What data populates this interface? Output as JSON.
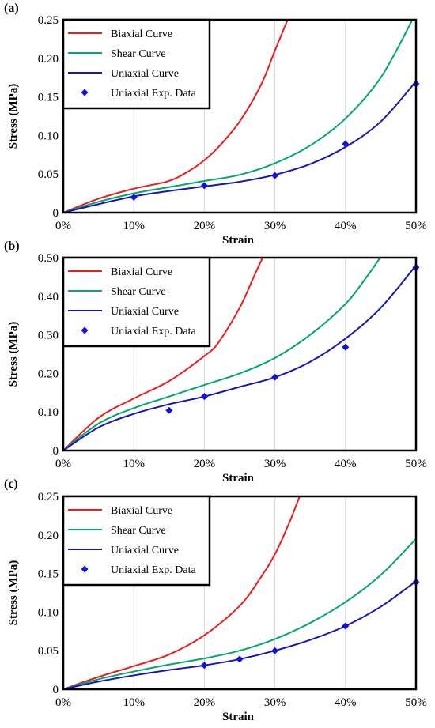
{
  "figure": {
    "colors": {
      "biaxial": "#ee1c1c",
      "shear": "#00a869",
      "uniaxial": "#1616b4",
      "exp_marker": "#1010e0",
      "frame": "#000000",
      "grid": "#d8d8d8"
    }
  },
  "chart_data": [
    {
      "panel_label": "(a)",
      "type": "line",
      "xlabel": "Strain",
      "ylabel": "Stress (MPa)",
      "xlim": [
        0,
        50
      ],
      "ylim": [
        0,
        0.25
      ],
      "grid": "vertical",
      "legend_position": "top-left",
      "x_ticks": [
        0,
        10,
        20,
        30,
        40,
        50
      ],
      "x_tick_labels": [
        "0%",
        "10%",
        "20%",
        "30%",
        "40%",
        "50%"
      ],
      "y_ticks": [
        0,
        0.05,
        0.1,
        0.15,
        0.2,
        0.25
      ],
      "y_tick_labels": [
        "0",
        "0.05",
        "0.10",
        "0.15",
        "0.20",
        "0.25"
      ],
      "series": [
        {
          "name": "Biaxial Curve",
          "kind": "line",
          "color": "#ee1c1c",
          "x": [
            0,
            5,
            10,
            15,
            18,
            20,
            22,
            25,
            28,
            30,
            31.8
          ],
          "y": [
            0,
            0.018,
            0.031,
            0.041,
            0.055,
            0.068,
            0.085,
            0.118,
            0.165,
            0.21,
            0.25
          ]
        },
        {
          "name": "Shear Curve",
          "kind": "line",
          "color": "#00a869",
          "x": [
            0,
            5,
            10,
            15,
            20,
            25,
            30,
            35,
            40,
            45,
            49.5
          ],
          "y": [
            0,
            0.014,
            0.025,
            0.033,
            0.041,
            0.049,
            0.064,
            0.087,
            0.122,
            0.175,
            0.25
          ]
        },
        {
          "name": "Uniaxial Curve",
          "kind": "line",
          "color": "#1616b4",
          "x": [
            0,
            5,
            10,
            15,
            20,
            25,
            30,
            35,
            40,
            45,
            50
          ],
          "y": [
            0,
            0.011,
            0.021,
            0.028,
            0.034,
            0.04,
            0.049,
            0.063,
            0.085,
            0.118,
            0.17
          ]
        },
        {
          "name": "Uniaxial Exp. Data",
          "kind": "marker",
          "color": "#1010e0",
          "x": [
            10,
            20,
            30,
            40,
            50
          ],
          "y": [
            0.02,
            0.035,
            0.048,
            0.089,
            0.167
          ]
        }
      ]
    },
    {
      "panel_label": "(b)",
      "type": "line",
      "xlabel": "Strain",
      "ylabel": "Stress (MPa)",
      "xlim": [
        0,
        50
      ],
      "ylim": [
        0,
        0.5
      ],
      "grid": "vertical",
      "legend_position": "top-left",
      "x_ticks": [
        0,
        10,
        20,
        30,
        40,
        50
      ],
      "x_tick_labels": [
        "0%",
        "10%",
        "20%",
        "30%",
        "40%",
        "50%"
      ],
      "y_ticks": [
        0,
        0.1,
        0.2,
        0.3,
        0.4,
        0.5
      ],
      "y_tick_labels": [
        "0",
        "0.10",
        "0.20",
        "0.30",
        "0.40",
        "0.50"
      ],
      "series": [
        {
          "name": "Biaxial Curve",
          "kind": "line",
          "color": "#ee1c1c",
          "x": [
            0,
            5,
            10,
            15,
            20,
            22,
            25,
            27,
            28.5
          ],
          "y": [
            0,
            0.085,
            0.135,
            0.18,
            0.245,
            0.28,
            0.37,
            0.45,
            0.51
          ]
        },
        {
          "name": "Shear Curve",
          "kind": "line",
          "color": "#00a869",
          "x": [
            0,
            5,
            10,
            15,
            20,
            25,
            30,
            35,
            40,
            43,
            45.3
          ],
          "y": [
            0,
            0.07,
            0.11,
            0.14,
            0.17,
            0.2,
            0.24,
            0.3,
            0.38,
            0.45,
            0.51
          ]
        },
        {
          "name": "Uniaxial Curve",
          "kind": "line",
          "color": "#1616b4",
          "x": [
            0,
            5,
            10,
            15,
            20,
            25,
            30,
            35,
            40,
            45,
            50
          ],
          "y": [
            0,
            0.06,
            0.095,
            0.12,
            0.14,
            0.165,
            0.19,
            0.23,
            0.29,
            0.37,
            0.48
          ]
        },
        {
          "name": "Uniaxial Exp. Data",
          "kind": "marker",
          "color": "#1010e0",
          "x": [
            15,
            20,
            30,
            40,
            50
          ],
          "y": [
            0.104,
            0.14,
            0.19,
            0.268,
            0.475
          ]
        }
      ]
    },
    {
      "panel_label": "(c)",
      "type": "line",
      "xlabel": "Strain",
      "ylabel": "Stress (MPa)",
      "xlim": [
        0,
        50
      ],
      "ylim": [
        0,
        0.25
      ],
      "grid": "vertical",
      "legend_position": "top-left",
      "x_ticks": [
        0,
        10,
        20,
        30,
        40,
        50
      ],
      "x_tick_labels": [
        "0%",
        "10%",
        "20%",
        "30%",
        "40%",
        "50%"
      ],
      "y_ticks": [
        0,
        0.05,
        0.1,
        0.15,
        0.2,
        0.25
      ],
      "y_tick_labels": [
        "0",
        "0.05",
        "0.10",
        "0.15",
        "0.20",
        "0.25"
      ],
      "series": [
        {
          "name": "Biaxial Curve",
          "kind": "line",
          "color": "#ee1c1c",
          "x": [
            0,
            5,
            10,
            15,
            20,
            25,
            28,
            30,
            32,
            33.5
          ],
          "y": [
            0,
            0.016,
            0.03,
            0.045,
            0.07,
            0.108,
            0.145,
            0.175,
            0.215,
            0.25
          ]
        },
        {
          "name": "Shear Curve",
          "kind": "line",
          "color": "#00a869",
          "x": [
            0,
            5,
            10,
            15,
            20,
            25,
            30,
            35,
            40,
            45,
            50
          ],
          "y": [
            0,
            0.013,
            0.023,
            0.032,
            0.04,
            0.05,
            0.065,
            0.086,
            0.113,
            0.148,
            0.195
          ]
        },
        {
          "name": "Uniaxial Curve",
          "kind": "line",
          "color": "#1616b4",
          "x": [
            0,
            5,
            10,
            15,
            20,
            25,
            30,
            35,
            40,
            45,
            50
          ],
          "y": [
            0,
            0.01,
            0.018,
            0.025,
            0.031,
            0.039,
            0.05,
            0.064,
            0.082,
            0.107,
            0.14
          ]
        },
        {
          "name": "Uniaxial Exp. Data",
          "kind": "marker",
          "color": "#1010e0",
          "x": [
            20,
            25,
            30,
            40,
            50
          ],
          "y": [
            0.031,
            0.039,
            0.05,
            0.082,
            0.139
          ]
        }
      ]
    }
  ]
}
